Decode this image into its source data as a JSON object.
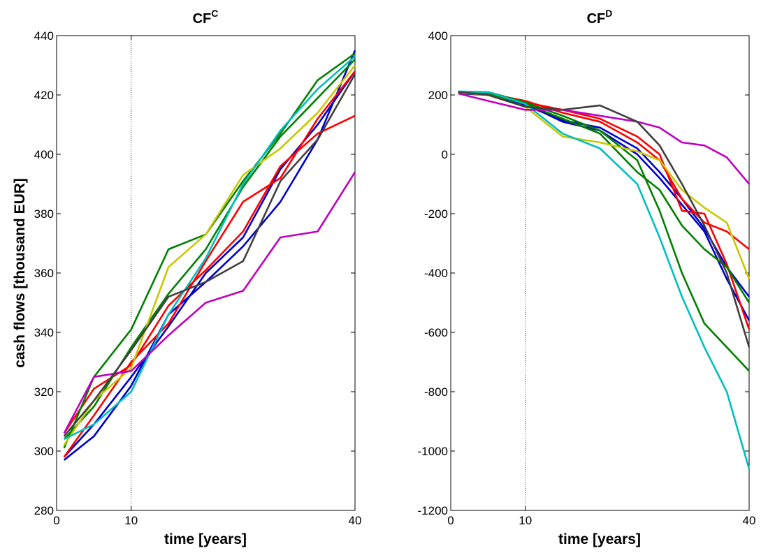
{
  "figure": {
    "shared_ylabel": "cash flows [thousand EUR]"
  },
  "chart_data": [
    {
      "id": "left",
      "type": "line",
      "title": {
        "main": "CF",
        "superscript": "C"
      },
      "xlabel": "time [years]",
      "ylabel": "cash flows [thousand EUR]",
      "xlim": [
        0,
        40
      ],
      "ylim": [
        280,
        440
      ],
      "xticks": [
        0,
        10,
        40
      ],
      "yticks": [
        280,
        300,
        320,
        340,
        360,
        380,
        400,
        420,
        440
      ],
      "vline": 10,
      "grid": false,
      "x": [
        1,
        5,
        10,
        15,
        20,
        25,
        30,
        35,
        40
      ],
      "series": [
        {
          "color": "#0000cc",
          "values": [
            297,
            305,
            322,
            346,
            357,
            369,
            384,
            405,
            435
          ]
        },
        {
          "color": "#0000cc",
          "values": [
            298,
            309,
            325,
            342,
            360,
            372,
            395,
            410,
            428
          ]
        },
        {
          "color": "#ff0000",
          "values": [
            306,
            321,
            329,
            349,
            361,
            374,
            396,
            407,
            413
          ]
        },
        {
          "color": "#ff0000",
          "values": [
            298,
            312,
            330,
            343,
            364,
            384,
            392,
            412,
            428
          ]
        },
        {
          "color": "#008000",
          "values": [
            301,
            325,
            341,
            368,
            373,
            391,
            407,
            425,
            434
          ]
        },
        {
          "color": "#008000",
          "values": [
            304,
            315,
            335,
            353,
            368,
            389,
            406,
            419,
            432
          ]
        },
        {
          "color": "#c8c800",
          "values": [
            302,
            317,
            328,
            362,
            373,
            393,
            402,
            414,
            430
          ]
        },
        {
          "color": "#00bfbf",
          "values": [
            304,
            309,
            320,
            346,
            365,
            390,
            408,
            422,
            433
          ]
        },
        {
          "color": "#c000c0",
          "values": [
            306,
            325,
            327,
            339,
            350,
            354,
            372,
            374,
            394
          ]
        },
        {
          "color": "#404040",
          "values": [
            305,
            317,
            334,
            352,
            357,
            364,
            391,
            405,
            427
          ]
        }
      ]
    },
    {
      "id": "right",
      "type": "line",
      "title": {
        "main": "CF",
        "superscript": "D"
      },
      "xlabel": "time [years]",
      "xlim": [
        0,
        40
      ],
      "ylim": [
        -1200,
        400
      ],
      "xticks": [
        0,
        10,
        40
      ],
      "yticks": [
        -1200,
        -1000,
        -800,
        -600,
        -400,
        -200,
        0,
        200,
        400
      ],
      "vline": 10,
      "grid": false,
      "x": [
        1,
        5,
        10,
        15,
        20,
        25,
        28,
        31,
        34,
        37,
        40
      ],
      "series": [
        {
          "color": "#0000cc",
          "values": [
            210,
            205,
            170,
            110,
            80,
            0,
            -80,
            -170,
            -260,
            -420,
            -560
          ]
        },
        {
          "color": "#0000cc",
          "values": [
            205,
            200,
            165,
            115,
            90,
            20,
            -60,
            -150,
            -250,
            -380,
            -480
          ]
        },
        {
          "color": "#ff0000",
          "values": [
            208,
            200,
            175,
            150,
            120,
            60,
            0,
            -190,
            -200,
            -370,
            -590
          ]
        },
        {
          "color": "#ff0000",
          "values": [
            206,
            205,
            180,
            140,
            110,
            40,
            -20,
            -150,
            -230,
            -260,
            -320
          ]
        },
        {
          "color": "#008000",
          "values": [
            210,
            210,
            175,
            130,
            80,
            -20,
            -190,
            -400,
            -570,
            -650,
            -730
          ]
        },
        {
          "color": "#008000",
          "values": [
            205,
            205,
            170,
            120,
            70,
            -60,
            -120,
            -240,
            -320,
            -380,
            -500
          ]
        },
        {
          "color": "#c8c800",
          "values": [
            208,
            200,
            160,
            60,
            40,
            10,
            -20,
            -120,
            -180,
            -230,
            -420
          ]
        },
        {
          "color": "#00bfbf",
          "values": [
            212,
            210,
            170,
            70,
            20,
            -100,
            -280,
            -480,
            -650,
            -800,
            -1060
          ]
        },
        {
          "color": "#c000c0",
          "values": [
            205,
            180,
            150,
            150,
            130,
            110,
            90,
            40,
            30,
            -10,
            -100
          ]
        },
        {
          "color": "#404040",
          "values": [
            210,
            200,
            160,
            150,
            165,
            110,
            30,
            -100,
            -240,
            -400,
            -650
          ]
        }
      ]
    }
  ]
}
